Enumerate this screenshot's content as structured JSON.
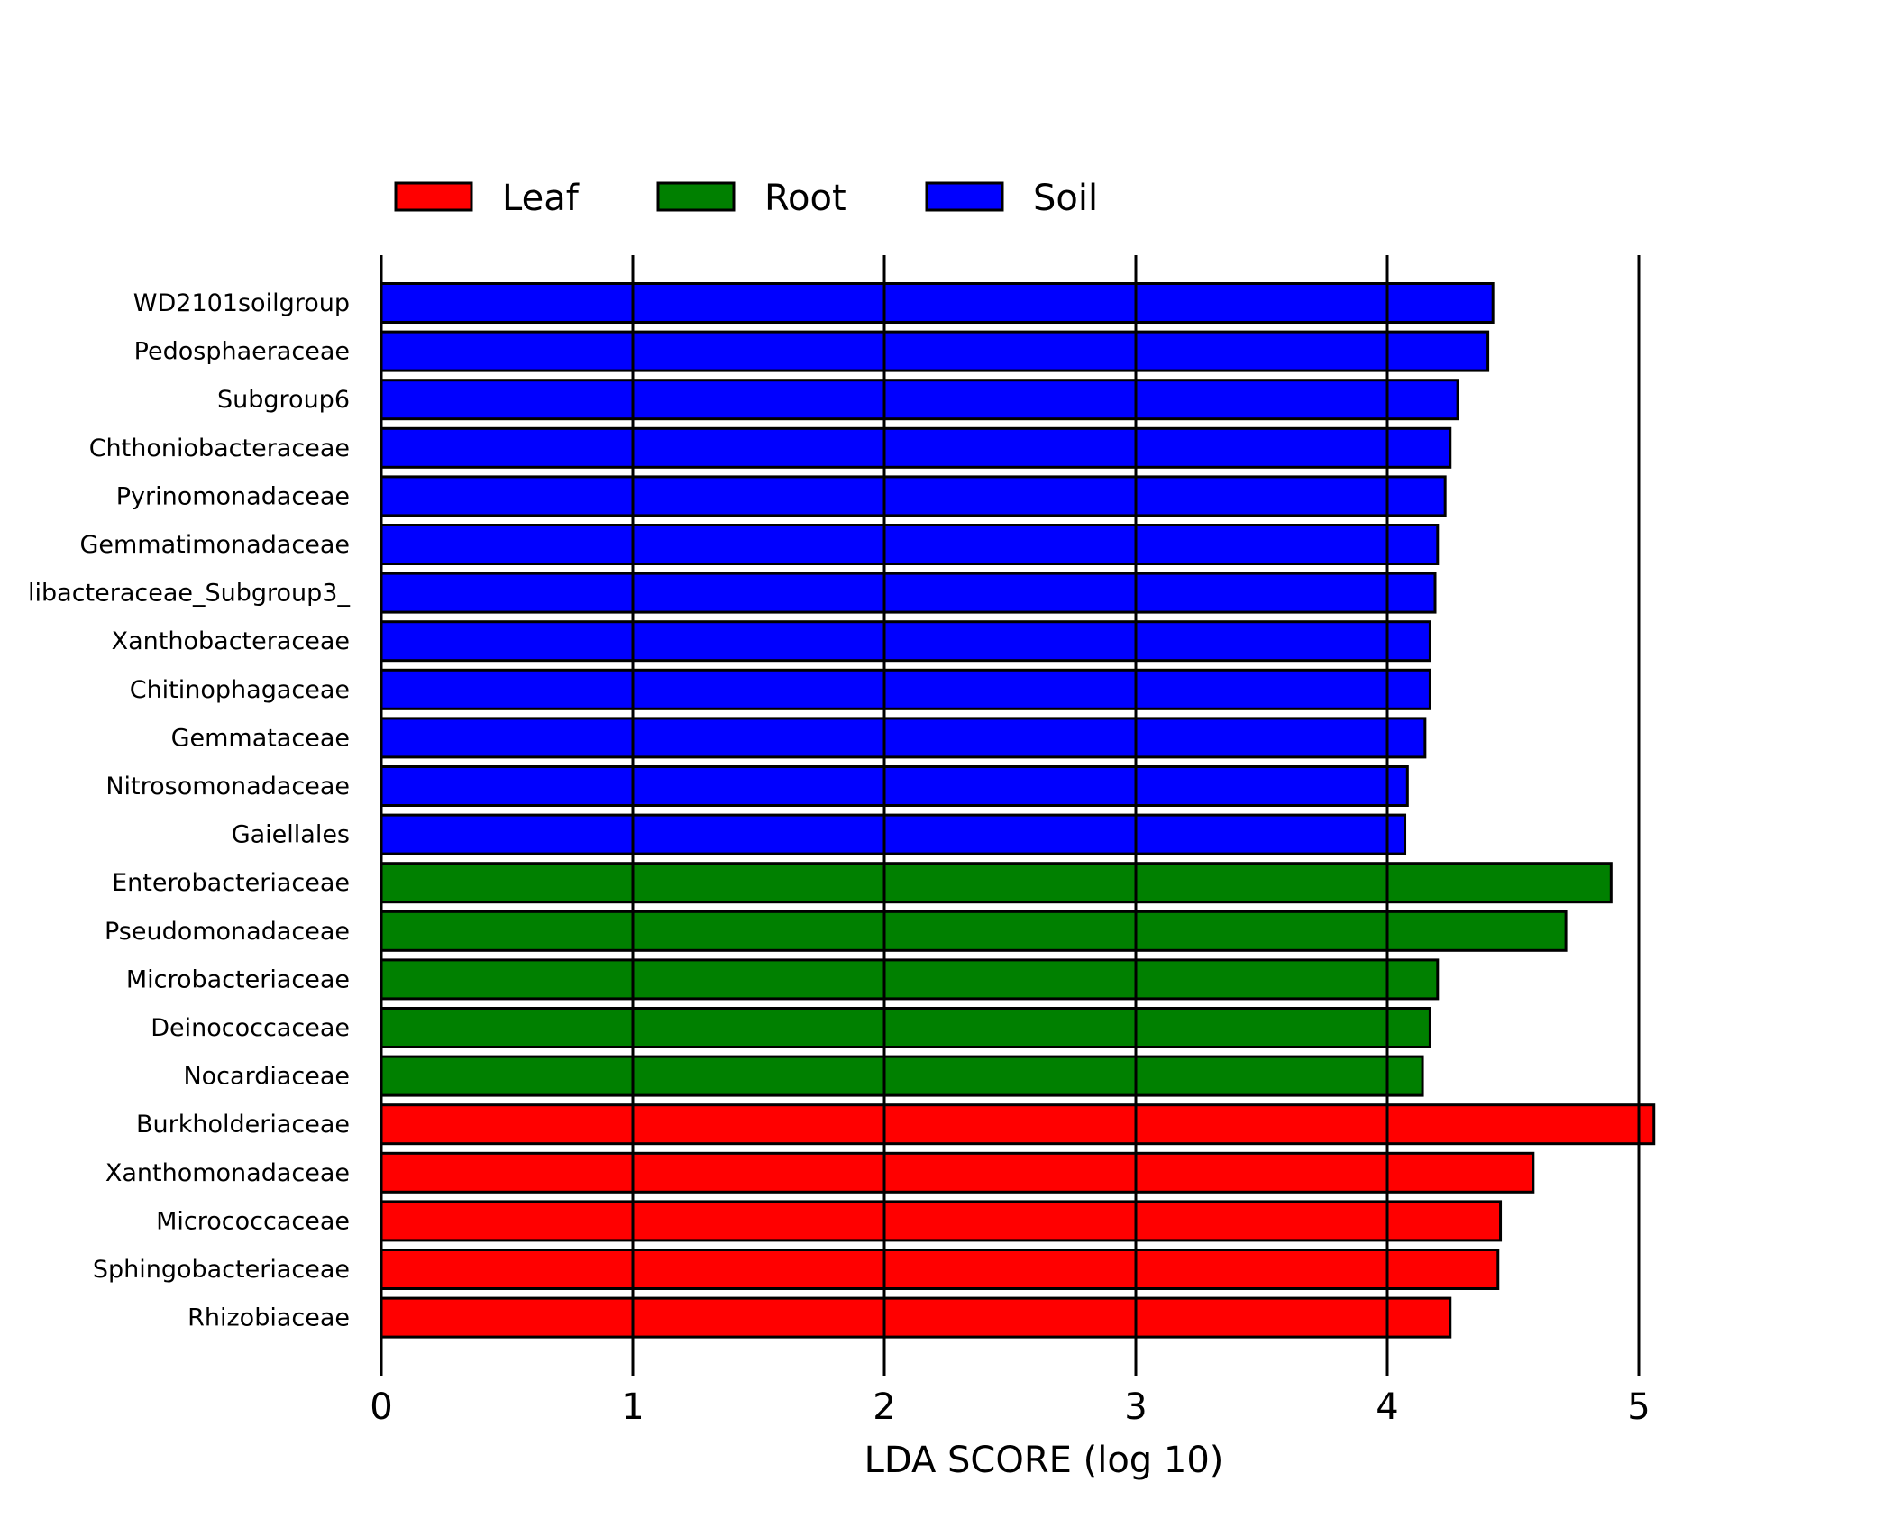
{
  "chart_data": {
    "type": "bar",
    "orientation": "horizontal",
    "xlabel": "LDA SCORE (log 10)",
    "xlim": [
      0,
      5.6
    ],
    "xticks": [
      0,
      1,
      2,
      3,
      4,
      5
    ],
    "grid": "vertical lines at x ticks",
    "legend_position": "top-left",
    "legend": [
      {
        "name": "Leaf",
        "color": "#ff0000"
      },
      {
        "name": "Root",
        "color": "#008000"
      },
      {
        "name": "Soil",
        "color": "#0000ff"
      }
    ],
    "bars": [
      {
        "label": "WD2101soilgroup",
        "value": 4.42,
        "group": "Soil"
      },
      {
        "label": "Pedosphaeraceae",
        "value": 4.4,
        "group": "Soil"
      },
      {
        "label": "Subgroup6",
        "value": 4.28,
        "group": "Soil"
      },
      {
        "label": "Chthoniobacteraceae",
        "value": 4.25,
        "group": "Soil"
      },
      {
        "label": "Pyrinomonadaceae",
        "value": 4.23,
        "group": "Soil"
      },
      {
        "label": "Gemmatimonadaceae",
        "value": 4.2,
        "group": "Soil"
      },
      {
        "label": "libacteraceae_Subgroup3_",
        "value": 4.19,
        "group": "Soil"
      },
      {
        "label": "Xanthobacteraceae",
        "value": 4.17,
        "group": "Soil"
      },
      {
        "label": "Chitinophagaceae",
        "value": 4.17,
        "group": "Soil"
      },
      {
        "label": "Gemmataceae",
        "value": 4.15,
        "group": "Soil"
      },
      {
        "label": "Nitrosomonadaceae",
        "value": 4.08,
        "group": "Soil"
      },
      {
        "label": "Gaiellales",
        "value": 4.07,
        "group": "Soil"
      },
      {
        "label": "Enterobacteriaceae",
        "value": 4.89,
        "group": "Root"
      },
      {
        "label": "Pseudomonadaceae",
        "value": 4.71,
        "group": "Root"
      },
      {
        "label": "Microbacteriaceae",
        "value": 4.2,
        "group": "Root"
      },
      {
        "label": "Deinococcaceae",
        "value": 4.17,
        "group": "Root"
      },
      {
        "label": "Nocardiaceae",
        "value": 4.14,
        "group": "Root"
      },
      {
        "label": "Burkholderiaceae",
        "value": 5.06,
        "group": "Leaf"
      },
      {
        "label": "Xanthomonadaceae",
        "value": 4.58,
        "group": "Leaf"
      },
      {
        "label": "Micrococcaceae",
        "value": 4.45,
        "group": "Leaf"
      },
      {
        "label": "Sphingobacteriaceae",
        "value": 4.44,
        "group": "Leaf"
      },
      {
        "label": "Rhizobiaceae",
        "value": 4.25,
        "group": "Leaf"
      }
    ]
  }
}
